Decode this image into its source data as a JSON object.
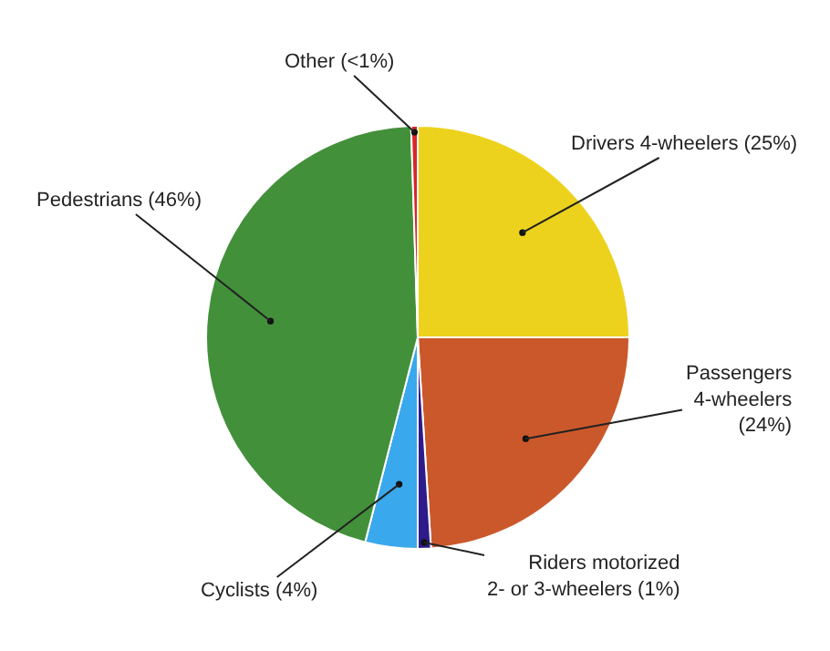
{
  "chart_data": {
    "type": "pie",
    "categories": [
      "Drivers 4-wheelers (25%)",
      "Passengers\n4-wheelers\n(24%)",
      "Riders motorized\n2- or 3-wheelers (1%)",
      "Cyclists (4%)",
      "Pedestrians (46%)",
      "Other (<1%)"
    ],
    "values": [
      25,
      24,
      1,
      4,
      45.5,
      0.5
    ],
    "colors": [
      "#ecd21c",
      "#cb582b",
      "#2e1a8a",
      "#3aa8ec",
      "#43903b",
      "#d8262b"
    ],
    "legend": false
  }
}
